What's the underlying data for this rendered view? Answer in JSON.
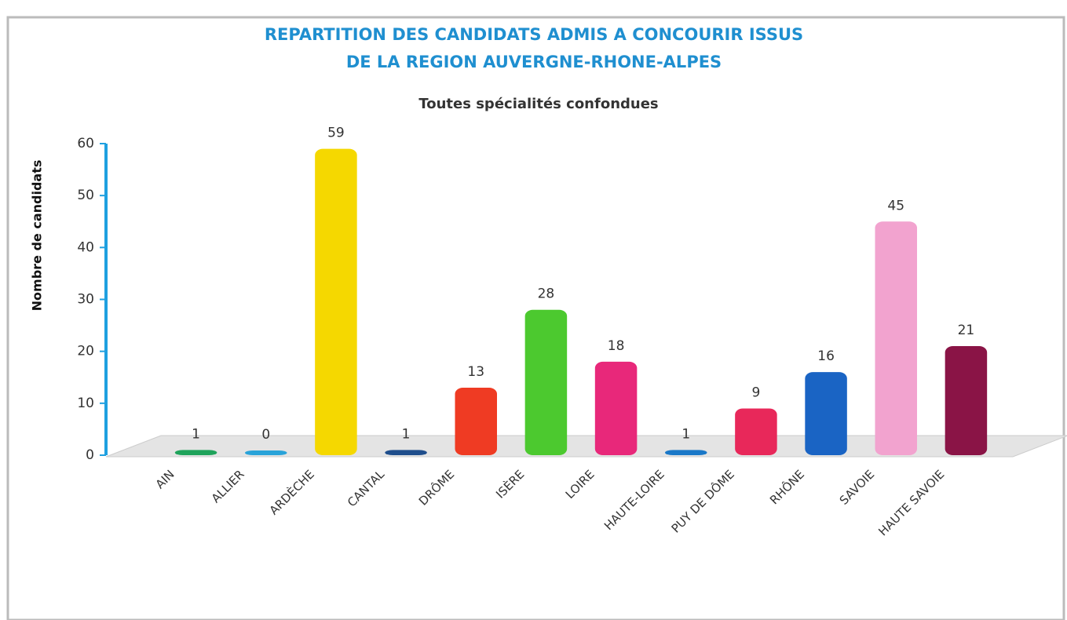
{
  "chart_data": {
    "type": "bar",
    "title": [
      "REPARTITION DES CANDIDATS ADMIS A CONCOURIR ISSUS",
      "DE LA REGION AUVERGNE-RHONE-ALPES"
    ],
    "subtitle": "Toutes spécialités confondues",
    "y_label": "Nombre de candidats",
    "categories": [
      "AIN",
      "ALLIER",
      "ARDÈCHE",
      "CANTAL",
      "DRÔME",
      "ISÈRE",
      "LOIRE",
      "HAUTE-LOIRE",
      "PUY DE DÔME",
      "RHÔNE",
      "SAVOIE",
      "HAUTE SAVOIE"
    ],
    "values": [
      1,
      0,
      59,
      1,
      13,
      28,
      18,
      1,
      9,
      16,
      45,
      21
    ],
    "colors": [
      "#1fa35b",
      "#29a3d9",
      "#f5d800",
      "#1f4e8c",
      "#ef3b23",
      "#4cc92f",
      "#e8287a",
      "#1a78c8",
      "#e8285a",
      "#1a64c4",
      "#f2a3cf",
      "#8a1446"
    ],
    "ylim": [
      0,
      60
    ],
    "yticks": [
      0,
      10,
      20,
      30,
      40,
      50,
      60
    ],
    "axis_color": "#1fa0e0"
  }
}
